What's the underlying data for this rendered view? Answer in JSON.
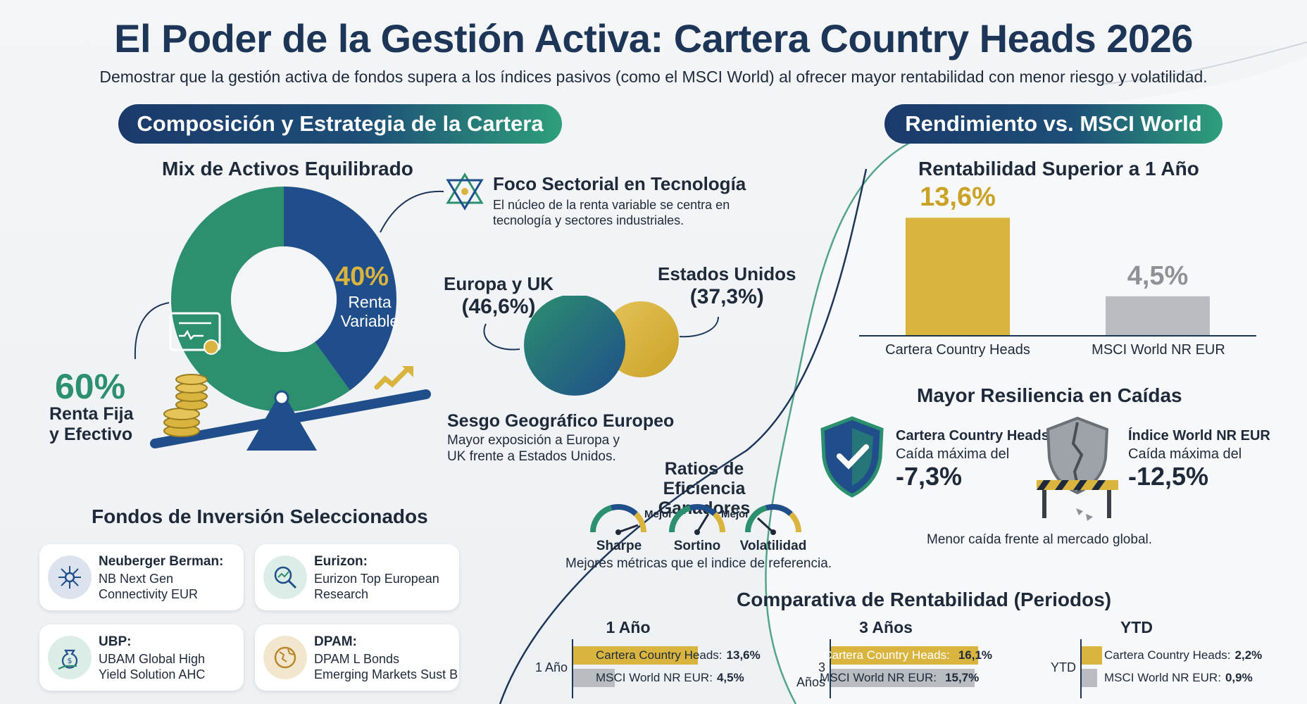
{
  "title": "El Poder de la Gestión Activa: Cartera Country Heads 2026",
  "subtitle": "Demostrar que la gestión activa de fondos supera a los índices pasivos (como el MSCI World) al ofrecer mayor rentabilidad con menor riesgo y volatilidad.",
  "left_section": {
    "header": "Composición y Estrategia de la Cartera",
    "mix_title": "Mix de Activos Equilibrado",
    "variable": {
      "pct": "40%",
      "label_line1": "Renta",
      "label_line2": "Variable",
      "value": 40,
      "color": "#1f4e8a"
    },
    "fija": {
      "pct": "60%",
      "label_line1": "Renta Fija",
      "label_line2": "y Efectivo",
      "value": 60,
      "color": "#2c8f6e"
    },
    "foco": {
      "title": "Foco Sectorial en Tecnología",
      "text_line1": "El núcleo de la renta variable se centra en",
      "text_line2": "tecnología y sectores industriales."
    },
    "geo": {
      "europe_line1": "Europa y UK",
      "europe_line2": "(46,6%)",
      "usa_line1": "Estados Unidos",
      "usa_line2": "(37,3%)",
      "title": "Sesgo Geográfico Europeo",
      "text_line1": "Mayor exposición a Europa y",
      "text_line2": "UK frente a Estados Unidos."
    },
    "funds_title": "Fondos de Inversión Seleccionados",
    "funds": [
      {
        "name": "Neuberger Berman:",
        "line1": "NB Next Gen",
        "line2": "Connectivity EUR",
        "icon": "network-icon"
      },
      {
        "name": "Eurizon:",
        "line1": "Eurizon Top European",
        "line2": "Research",
        "icon": "magnifier-chart-icon"
      },
      {
        "name": "UBP:",
        "line1": "UBAM Global High",
        "line2": "Yield Solution AHC",
        "icon": "money-bag-hand-icon"
      },
      {
        "name": "DPAM:",
        "line1": "DPAM L Bonds",
        "line2": "Emerging Markets Sust B",
        "icon": "globe-icon"
      }
    ]
  },
  "ratios": {
    "title_line1": "Ratios de",
    "title_line2": "Eficiencia Ganadores",
    "better": "Mejor",
    "items": [
      "Sharpe",
      "Sortino",
      "Volatilidad"
    ],
    "caption": "Mejores métricas que el indice de referencia."
  },
  "right_section": {
    "header": "Rendimiento vs. MSCI World",
    "bar_title": "Rentabilidad Superior a 1 Año",
    "chart_data": {
      "type": "bar",
      "categories": [
        "Cartera Country Heads",
        "MSCI World NR EUR"
      ],
      "values": [
        13.6,
        4.5
      ],
      "value_labels": [
        "13,6%",
        "4,5%"
      ],
      "colors": [
        "#d9b43f",
        "#b9bcc0"
      ],
      "label_colors": [
        "#c9a227",
        "#8e9297"
      ]
    },
    "resilience": {
      "title": "Mayor Resiliencia en Caídas",
      "cartera_name": "Cartera Country Heads",
      "cartera_label": "Caída máxima del",
      "cartera_value": "-7,3%",
      "index_name": "Índice World NR EUR",
      "index_label": "Caída máxima del",
      "index_value": "-12,5%",
      "caption": "Menor caída frente al mercado global."
    }
  },
  "comparison": {
    "title": "Comparativa de Rentabilidad (Periodos)",
    "groups": [
      {
        "title": "1 Año",
        "axis": "1 Año",
        "cartera_label": "Cartera Country Heads:",
        "cartera_value": "13,6%",
        "msci_label": "MSCI World NR EUR:",
        "msci_value": "4,5%",
        "cartera": 13.6,
        "msci": 4.5
      },
      {
        "title": "3 Años",
        "axis": "3 Años",
        "cartera_label": "Cartera Country Heads:",
        "cartera_value": "16,1%",
        "msci_label": "MSCI World NR EUR:",
        "msci_value": "15,7%",
        "cartera": 16.1,
        "msci": 15.7
      },
      {
        "title": "YTD",
        "axis": "YTD",
        "cartera_label": "Cartera Country Heads:",
        "cartera_value": "2,2%",
        "msci_label": "MSCI World NR EUR:",
        "msci_value": "0,9%",
        "cartera": 2.2,
        "msci": 0.9
      }
    ]
  },
  "colors": {
    "navy": "#1d3557",
    "green": "#2c8f6e",
    "gold": "#d9b43f",
    "gray": "#b9bcc0"
  }
}
